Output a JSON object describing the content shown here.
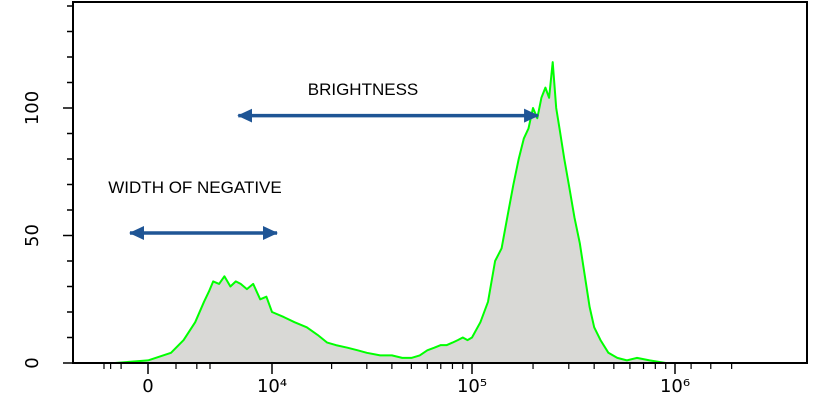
{
  "chart_data": {
    "type": "area",
    "title": "",
    "xlabel": "",
    "ylabel": "",
    "x_scale": "biexponential",
    "ylim": [
      0,
      140
    ],
    "y_ticks": [
      {
        "value": 0,
        "label": "0"
      },
      {
        "value": 50,
        "label": "50"
      },
      {
        "value": 100,
        "label": "100"
      }
    ],
    "x_ticks": [
      {
        "value": 0,
        "label": "0"
      },
      {
        "value": 10000,
        "label": "10⁴"
      },
      {
        "value": 100000,
        "label": "10⁵"
      },
      {
        "value": 1000000,
        "label": "10⁶"
      }
    ],
    "grid": false,
    "colors": {
      "line": "#00ff00",
      "fill": "#d9d9d6",
      "arrow": "#1f5595",
      "axis": "#000000"
    },
    "series": [
      {
        "x": [
          -3000,
          -1500,
          0,
          700,
          1300,
          1900,
          2500,
          2900,
          3200,
          3600,
          4000,
          4500,
          5000,
          5500,
          6200,
          7000,
          8000,
          9000,
          10000,
          11500,
          13000,
          15000,
          17000,
          19000,
          21000,
          24000,
          27000,
          30000,
          35000,
          40000,
          45000,
          50000,
          55000,
          60000,
          65000,
          70000,
          75000,
          80000,
          85000,
          90000,
          95000,
          100000,
          110000,
          120000,
          130000,
          140000,
          150000,
          160000,
          170000,
          180000,
          190000,
          200000,
          210000,
          220000,
          230000,
          240000,
          250000,
          260000,
          270000,
          285000,
          300000,
          320000,
          340000,
          360000,
          380000,
          400000,
          430000,
          470000,
          520000,
          580000,
          650000,
          750000,
          900000
        ],
        "y": [
          0,
          0,
          1,
          4,
          9,
          16,
          24,
          28,
          32,
          31,
          34,
          30,
          32,
          31,
          29,
          31,
          25,
          26,
          20,
          18,
          16,
          14,
          11,
          8,
          7,
          6,
          5,
          4,
          3,
          3,
          2,
          2,
          3,
          5,
          6,
          7,
          7,
          8,
          9,
          10,
          9,
          10,
          16,
          24,
          40,
          45,
          58,
          70,
          80,
          88,
          92,
          100,
          96,
          104,
          108,
          104,
          118,
          100,
          92,
          80,
          70,
          57,
          47,
          34,
          22,
          14,
          9,
          4,
          2,
          1,
          2,
          1,
          0
        ]
      }
    ],
    "annotations": [
      {
        "text": "BRIGHTNESS",
        "arrow_from_x": 7000,
        "arrow_to_x": 200000,
        "arrow_y": 97
      },
      {
        "text": "WIDTH OF NEGATIVE",
        "arrow_from_x": -500,
        "arrow_to_x": 10000,
        "arrow_y": 51
      }
    ]
  }
}
